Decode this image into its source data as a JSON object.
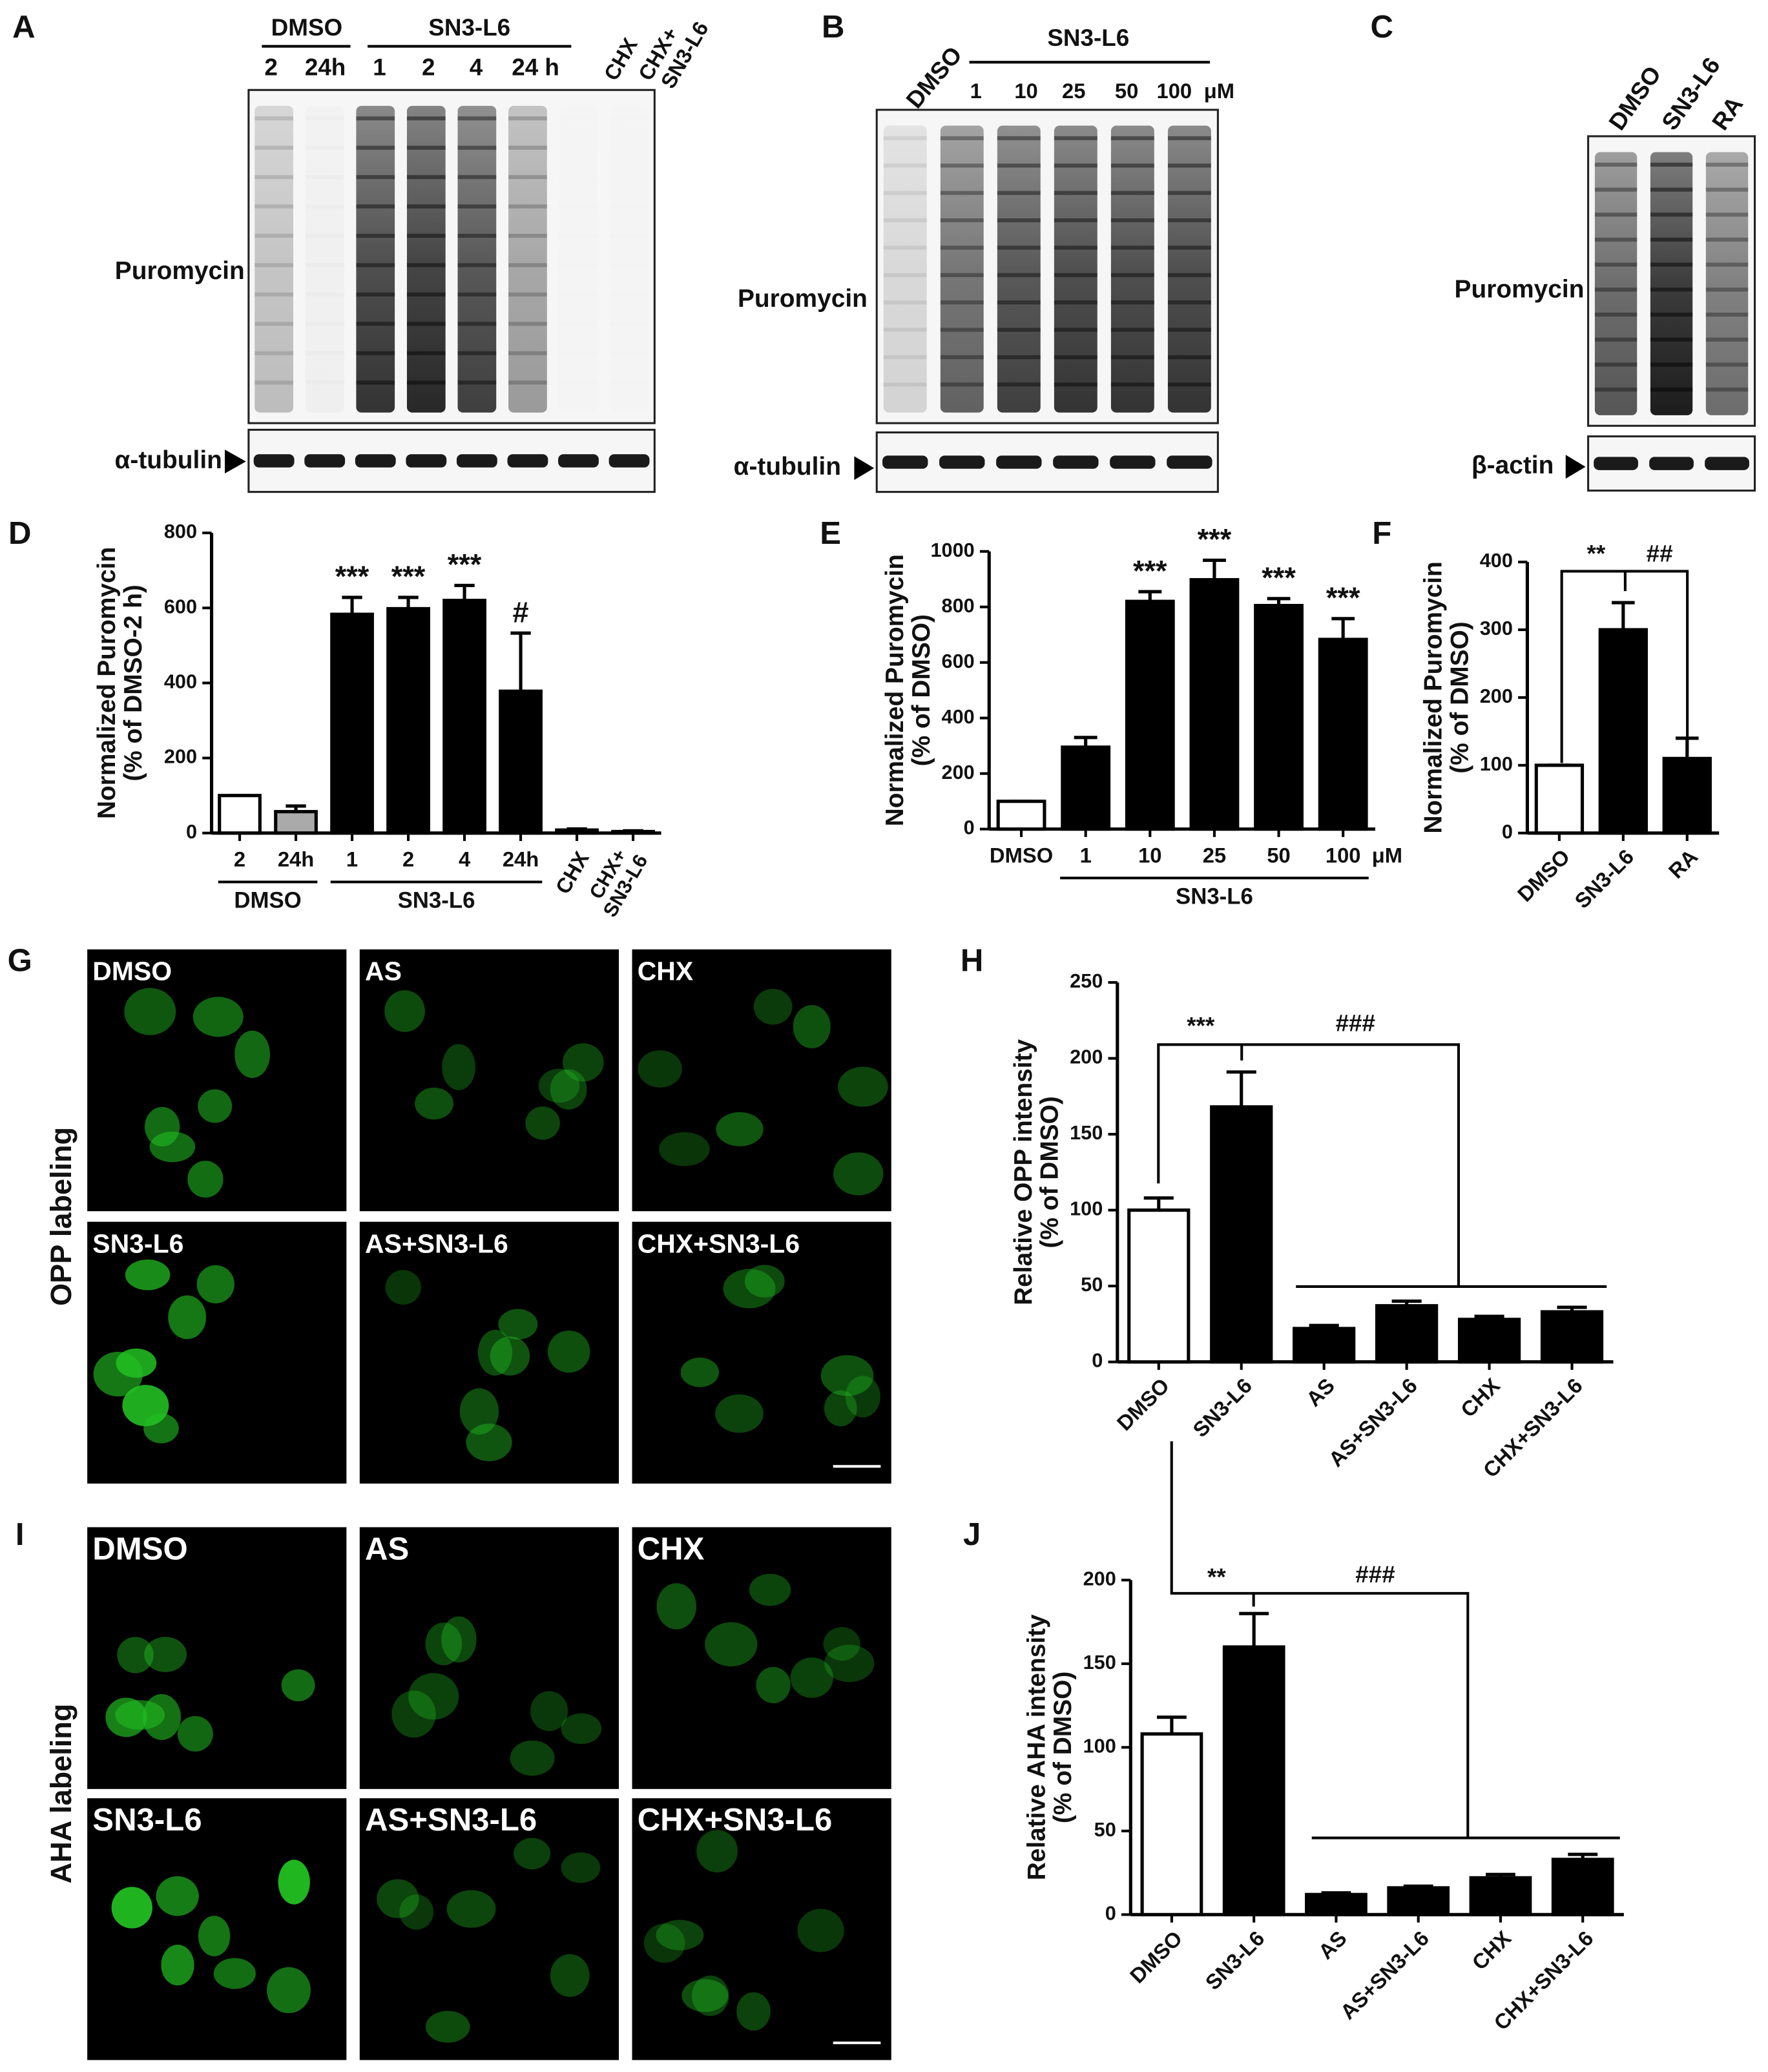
{
  "panels": [
    "A",
    "B",
    "C",
    "D",
    "E",
    "F",
    "G",
    "H",
    "I",
    "J"
  ],
  "blots": {
    "A": {
      "groups": [
        "DMSO",
        "SN3-L6"
      ],
      "lanes": [
        "2",
        "24h",
        "1",
        "2",
        "4",
        "24 h",
        "CHX",
        [
          "CHX+",
          "SN3-L6"
        ]
      ],
      "labels": [
        "Puromycin",
        "α-tubulin"
      ]
    },
    "B": {
      "groups": [
        "SN3-L6"
      ],
      "control": "DMSO",
      "lanes": [
        "1",
        "10",
        "25",
        "50",
        "100"
      ],
      "unit": "μM",
      "labels": [
        "Puromycin",
        "α-tubulin"
      ]
    },
    "C": {
      "lanes": [
        "DMSO",
        "SN3-L6",
        "RA"
      ],
      "labels": [
        "Puromycin",
        "β-actin"
      ]
    }
  },
  "micrographs": {
    "G": {
      "side_label": "OPP labeling",
      "conditions": [
        "DMSO",
        "AS",
        "CHX",
        "SN3-L6",
        "AS+SN3-L6",
        "CHX+SN3-L6"
      ]
    },
    "I": {
      "side_label": "AHA labeling",
      "conditions": [
        "DMSO",
        "AS",
        "CHX",
        "SN3-L6",
        "AS+SN3-L6",
        "CHX+SN3-L6"
      ]
    }
  },
  "chart_data": [
    {
      "type": "bar",
      "ylabel": [
        "Normalized Puromycin",
        "(% of DMSO-2 h)"
      ],
      "categories": [
        "2",
        "24h",
        "1",
        "2",
        "4",
        "24h",
        "CHX",
        [
          "CHX+",
          "SN3-L6"
        ]
      ],
      "groups": [
        "DMSO",
        "SN3-L6"
      ],
      "values": [
        100,
        57,
        583,
        598,
        620,
        378,
        8,
        4
      ],
      "errors": [
        0,
        15,
        45,
        30,
        40,
        155,
        3,
        2
      ],
      "colors": [
        "#ffffff",
        "#aaaaaa",
        "#000000",
        "#000000",
        "#000000",
        "#000000",
        "#000000",
        "#000000"
      ],
      "bar_labels": [
        null,
        null,
        "***",
        "***",
        "***",
        "#",
        null,
        null
      ],
      "ylim": [
        0,
        800
      ],
      "yticks": [
        0,
        200,
        400,
        600,
        800
      ]
    },
    {
      "type": "bar",
      "ylabel": [
        "Normalized Puromycin",
        "(% of DMSO)"
      ],
      "categories": [
        "DMSO",
        "1",
        "10",
        "25",
        "50",
        "100"
      ],
      "unit": "μM",
      "groups": [
        "SN3-L6"
      ],
      "values": [
        100,
        295,
        820,
        898,
        805,
        683
      ],
      "errors": [
        0,
        35,
        35,
        70,
        25,
        75
      ],
      "colors": [
        "#ffffff",
        "#000000",
        "#000000",
        "#000000",
        "#000000",
        "#000000"
      ],
      "bar_labels": [
        null,
        null,
        "***",
        "***",
        "***",
        "***"
      ],
      "ylim": [
        0,
        1000
      ],
      "yticks": [
        0,
        200,
        400,
        600,
        800,
        1000
      ]
    },
    {
      "type": "bar",
      "ylabel": [
        "Normalized Puromycin",
        "(% of DMSO)"
      ],
      "categories": [
        "DMSO",
        "SN3-L6",
        "RA"
      ],
      "values": [
        100,
        300,
        110
      ],
      "errors": [
        0,
        40,
        30
      ],
      "colors": [
        "#ffffff",
        "#000000",
        "#000000"
      ],
      "annotations": [
        "**",
        "##"
      ],
      "ylim": [
        0,
        400
      ],
      "yticks": [
        0,
        100,
        200,
        300,
        400
      ]
    },
    {
      "type": "bar",
      "ylabel": [
        "Relative OPP intensity",
        "(% of DMSO)"
      ],
      "categories": [
        "DMSO",
        "SN3-L6",
        "AS",
        "AS+SN3-L6",
        "CHX",
        "CHX+SN3-L6"
      ],
      "values": [
        100,
        168,
        22,
        37,
        28,
        33
      ],
      "errors": [
        8,
        23,
        2,
        3,
        2,
        3
      ],
      "colors": [
        "#ffffff",
        "#000000",
        "#000000",
        "#000000",
        "#000000",
        "#000000"
      ],
      "annotations": [
        "***",
        "###"
      ],
      "ylim": [
        0,
        250
      ],
      "yticks": [
        0,
        50,
        100,
        150,
        200,
        250
      ]
    },
    {
      "type": "bar",
      "ylabel": [
        "Relative AHA intensity",
        "(% of DMSO)"
      ],
      "categories": [
        "DMSO",
        "SN3-L6",
        "AS",
        "AS+SN3-L6",
        "CHX",
        "CHX+SN3-L6"
      ],
      "values": [
        108,
        160,
        12,
        16,
        22,
        33
      ],
      "errors": [
        10,
        20,
        1,
        1,
        2,
        3
      ],
      "colors": [
        "#ffffff",
        "#000000",
        "#000000",
        "#000000",
        "#000000",
        "#000000"
      ],
      "annotations": [
        "**",
        "###"
      ],
      "ylim": [
        0,
        200
      ],
      "yticks": [
        0,
        50,
        100,
        150,
        200
      ]
    }
  ]
}
